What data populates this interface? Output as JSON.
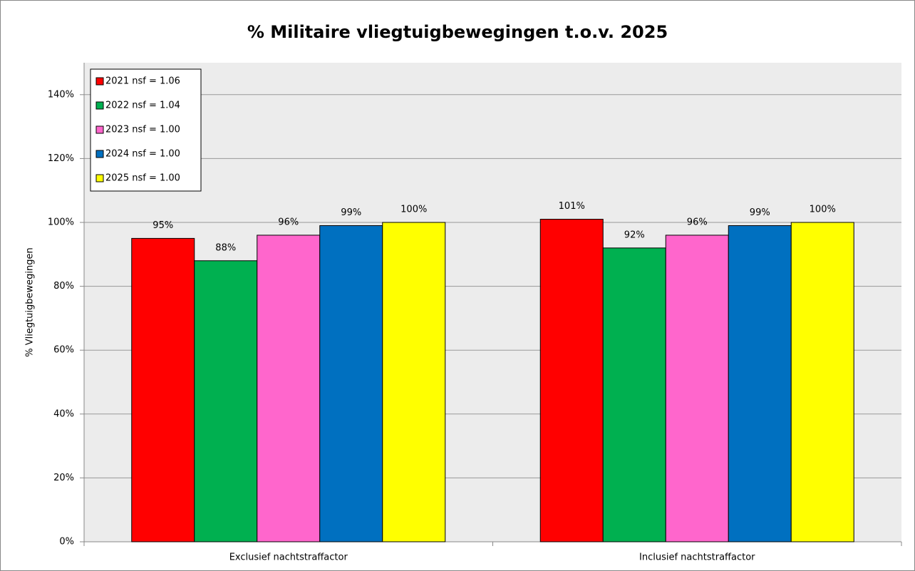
{
  "chart_data": {
    "type": "bar",
    "title": "% Militaire vliegtuigbewegingen t.o.v. 2025",
    "y_label": "% Vliegtuigbewegingen",
    "categories": [
      "Exclusief nachtstraffactor",
      "Inclusief nachtstraffactor"
    ],
    "series": [
      {
        "name": "2021  nsf = 1.06",
        "color": "#ff0000",
        "values": [
          95,
          101
        ],
        "value_labels": [
          "95%",
          "101%"
        ]
      },
      {
        "name": "2022  nsf = 1.04",
        "color": "#00b050",
        "values": [
          88,
          92
        ],
        "value_labels": [
          "88%",
          "92%"
        ]
      },
      {
        "name": "2023  nsf = 1.00",
        "color": "#ff66cc",
        "values": [
          96,
          96
        ],
        "value_labels": [
          "96%",
          "96%"
        ]
      },
      {
        "name": "2024  nsf = 1.00",
        "color": "#0070c0",
        "values": [
          99,
          99
        ],
        "value_labels": [
          "99%",
          "99%"
        ]
      },
      {
        "name": "2025  nsf = 1.00",
        "color": "#ffff00",
        "values": [
          100,
          100
        ],
        "value_labels": [
          "100%",
          "100%"
        ]
      }
    ],
    "ylim": [
      0,
      150
    ],
    "yticks": [
      {
        "value": 0,
        "label": "0%"
      },
      {
        "value": 20,
        "label": "20%"
      },
      {
        "value": 40,
        "label": "40%"
      },
      {
        "value": 60,
        "label": "60%"
      },
      {
        "value": 80,
        "label": "80%"
      },
      {
        "value": 100,
        "label": "100%"
      },
      {
        "value": 120,
        "label": "120%"
      },
      {
        "value": 140,
        "label": "140%"
      }
    ],
    "grid": true,
    "legend": "top-left"
  }
}
